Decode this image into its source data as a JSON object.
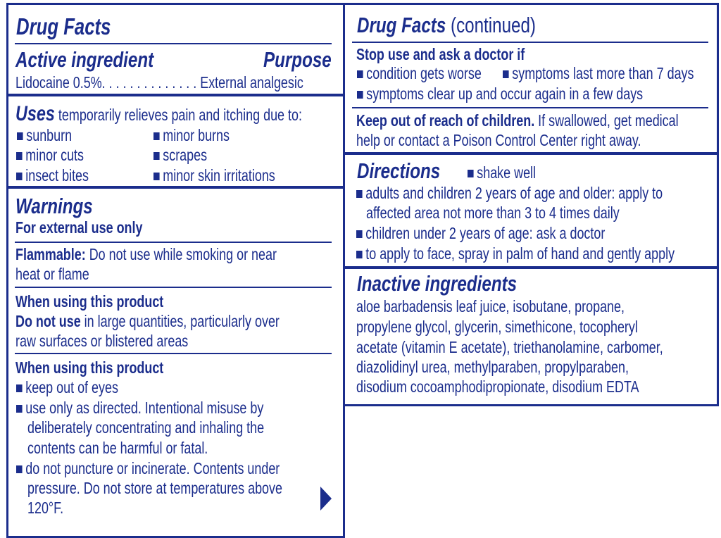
{
  "left": {
    "title": "Drug Facts",
    "active_header": "Active ingredient",
    "purpose_header": "Purpose",
    "active_line": "Lidocaine 0.5%. . . . . . . . . . . . . . External analgesic",
    "uses_header": "Uses",
    "uses_intro": " temporarily relieves pain and itching due to:",
    "uses_items": [
      "sunburn",
      "minor burns",
      "minor cuts",
      "scrapes",
      "insect bites",
      "minor skin irritations"
    ],
    "warnings_header": "Warnings",
    "external_use": "For external use only",
    "flammable_label": "Flammable:",
    "flammable_text": [
      " Do not use while smoking or near",
      "heat or flame"
    ],
    "when_using_1": "When using this product",
    "do_not_use_label": "Do not use",
    "do_not_use_text": [
      " in large quantities, particularly over",
      "raw surfaces or blistered areas"
    ],
    "when_using_2": "When using this product",
    "when_using_items": [
      [
        "keep out of eyes"
      ],
      [
        "use only as directed. Intentional misuse by",
        "deliberately concentrating and inhaling the",
        "contents can be harmful or fatal."
      ],
      [
        "do not puncture or incinerate. Contents under",
        "pressure. Do not store at temperatures above",
        "120°F."
      ]
    ],
    "continue_icon": "triangle-right"
  },
  "right": {
    "title": "Drug Facts",
    "title_suffix": " (continued)",
    "stop_use_header": "Stop use and ask a doctor if",
    "stop_use_items": [
      "condition gets worse",
      "symptoms last more than 7 days",
      "symptoms clear up and occur again in a few days"
    ],
    "keep_out_label": "Keep out of reach of children.",
    "keep_out_text": [
      " If swallowed, get medical",
      "help or contact a Poison Control Center right away."
    ],
    "directions_header": "Directions",
    "directions_items": [
      [
        "shake well"
      ],
      [
        "adults and children 2 years of age and older: apply to",
        "affected area not more than 3 to 4 times daily"
      ],
      [
        "children under 2 years of age: ask a doctor"
      ],
      [
        "to apply to face, spray in palm of hand and gently apply"
      ]
    ],
    "inactive_header": "Inactive ingredients",
    "inactive_lines": [
      "aloe barbadensis leaf juice, isobutane, propane,",
      "propylene glycol, glycerin, simethicone, tocopheryl",
      "acetate (vitamin E acetate), triethanolamine, carbomer,",
      "diazolidinyl urea, methylparaben, propylparaben,",
      "disodium cocoamphodipropionate, disodium EDTA"
    ]
  },
  "colors": {
    "ink": "#1b2d8c",
    "background": "#ffffff"
  }
}
